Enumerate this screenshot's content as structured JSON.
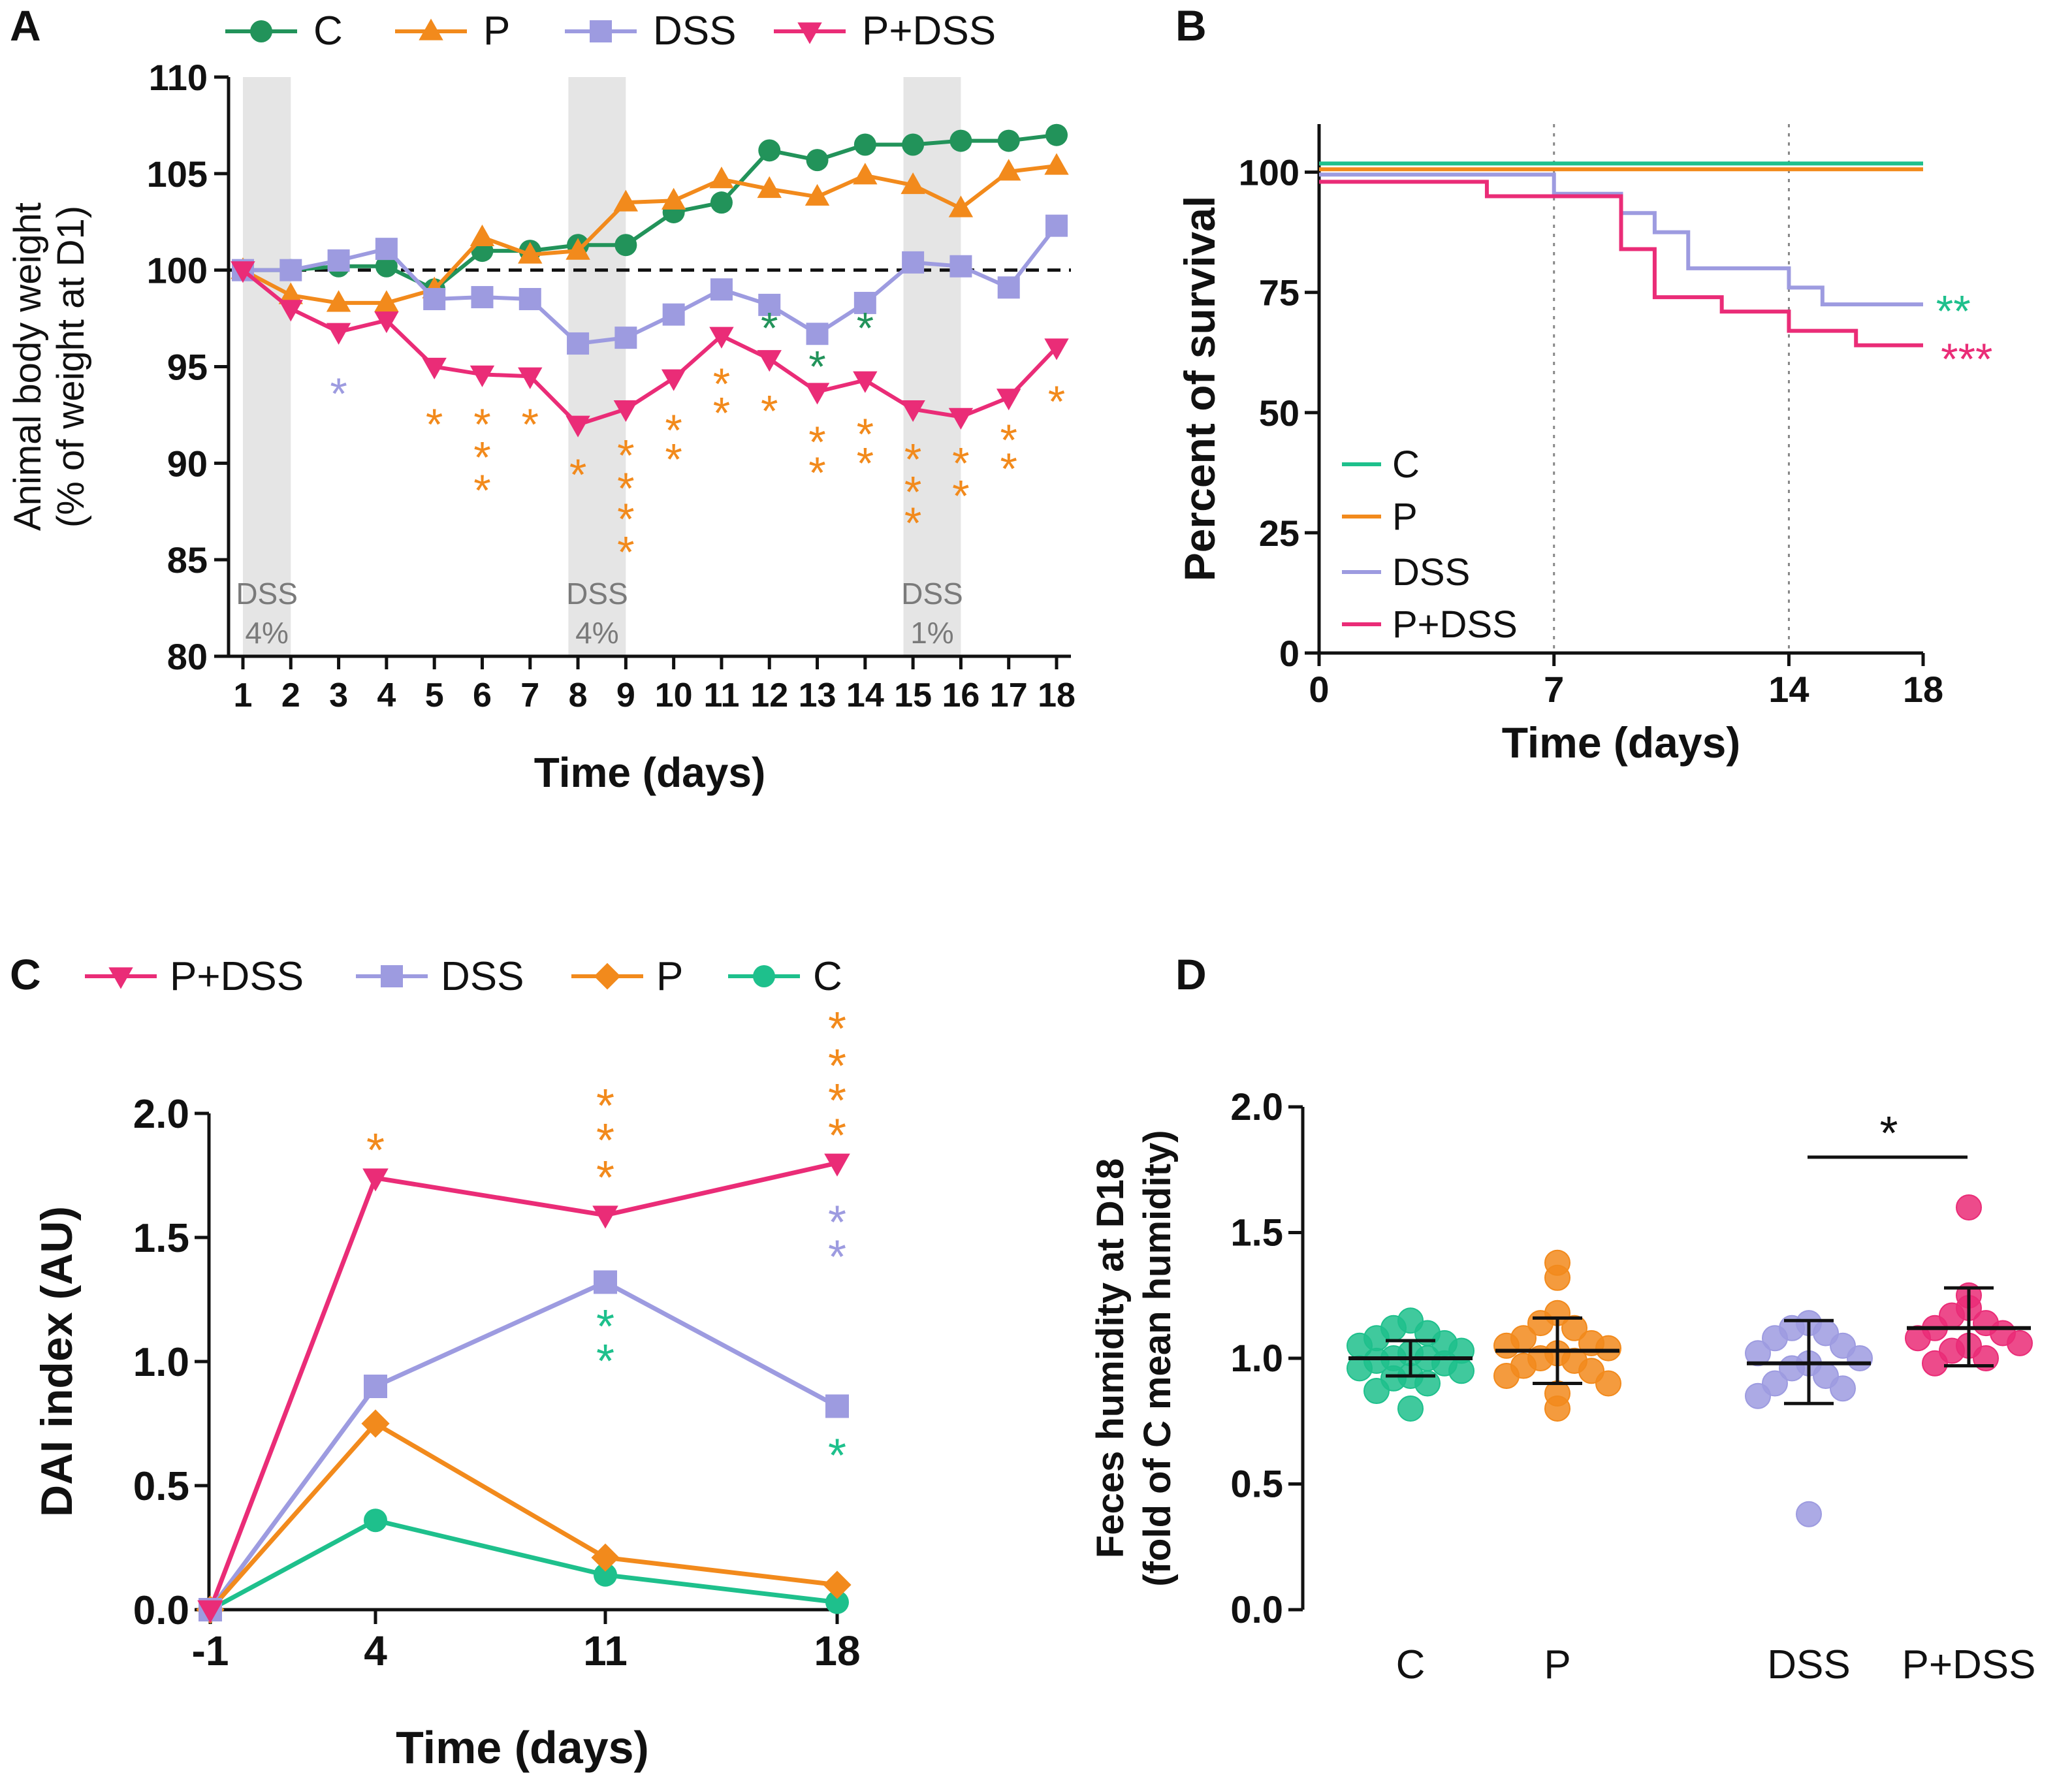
{
  "colors": {
    "C_A": "#22935a",
    "C": "#1ec08c",
    "P": "#f28a1c",
    "DSS": "#9d9be0",
    "PDSS": "#ea2c77",
    "shade": "#e5e5e5",
    "shade_text": "#7a7a7a",
    "black": "#111111"
  },
  "chart_data": [
    {
      "id": "A",
      "panel_label": "A",
      "type": "line",
      "title": "",
      "xlabel": "Time (days)",
      "ylabel_line1": "Animal body weight",
      "ylabel_line2": "(% of weight at D1)",
      "xlim": [
        0.7,
        18.3
      ],
      "ylim": [
        80,
        110
      ],
      "yticks": [
        80,
        85,
        90,
        95,
        100,
        105,
        110
      ],
      "xticks": [
        1,
        2,
        3,
        4,
        5,
        6,
        7,
        8,
        9,
        10,
        11,
        12,
        13,
        14,
        15,
        16,
        17,
        18
      ],
      "reference_line": 100,
      "legend_placement": "top",
      "shaded_periods": [
        {
          "from": 1,
          "to": 2,
          "label_line1": "DSS",
          "label_line2": "4%"
        },
        {
          "from": 7.8,
          "to": 9,
          "label_line1": "DSS",
          "label_line2": "4%"
        },
        {
          "from": 14.8,
          "to": 16,
          "label_line1": "DSS",
          "label_line2": "1%"
        }
      ],
      "series": [
        {
          "key": "C",
          "name": "C",
          "color_key": "C_A",
          "marker": "circle",
          "values": [
            100,
            100,
            100.2,
            100.2,
            99,
            101,
            101,
            101.3,
            101.3,
            103,
            103.5,
            106.2,
            105.7,
            106.5,
            106.5,
            106.7,
            106.7,
            107
          ]
        },
        {
          "key": "P",
          "name": "P",
          "color_key": "P",
          "marker": "triangle-up",
          "values": [
            100,
            98.7,
            98.3,
            98.3,
            99,
            101.7,
            100.8,
            101,
            103.5,
            103.6,
            104.7,
            104.2,
            103.8,
            104.9,
            104.4,
            103.2,
            105.1,
            105.4
          ]
        },
        {
          "key": "DSS",
          "name": "DSS",
          "color_key": "DSS",
          "marker": "square",
          "values": [
            100,
            100,
            100.5,
            101.1,
            98.5,
            98.6,
            98.5,
            96.2,
            96.5,
            97.7,
            99,
            98.2,
            96.7,
            98.3,
            100.4,
            100.2,
            99.1,
            102.3
          ]
        },
        {
          "key": "PDSS",
          "name": "P+DSS",
          "color_key": "PDSS",
          "marker": "triangle-down",
          "values": [
            100,
            98,
            96.8,
            97.4,
            95,
            94.6,
            94.5,
            92,
            92.8,
            94.4,
            96.6,
            95.4,
            93.7,
            94.3,
            92.8,
            92.4,
            93.4,
            96
          ]
        }
      ],
      "significance": [
        {
          "x": 3,
          "y": 93.7,
          "text": "*",
          "color_key": "DSS"
        },
        {
          "x": 5,
          "y": 92.1,
          "text": "*",
          "color_key": "P"
        },
        {
          "x": 6,
          "y": 92.1,
          "text": "*",
          "color_key": "P"
        },
        {
          "x": 6,
          "y": 90.4,
          "text": "*",
          "color_key": "P"
        },
        {
          "x": 6,
          "y": 88.7,
          "text": "*",
          "color_key": "P"
        },
        {
          "x": 7,
          "y": 92.1,
          "text": "*",
          "color_key": "P"
        },
        {
          "x": 8,
          "y": 89.5,
          "text": "*",
          "color_key": "P"
        },
        {
          "x": 9,
          "y": 90.5,
          "text": "*",
          "color_key": "P"
        },
        {
          "x": 9,
          "y": 88.8,
          "text": "*",
          "color_key": "P"
        },
        {
          "x": 9,
          "y": 87.2,
          "text": "*",
          "color_key": "P"
        },
        {
          "x": 9,
          "y": 85.5,
          "text": "*",
          "color_key": "P"
        },
        {
          "x": 10,
          "y": 91.8,
          "text": "*",
          "color_key": "P"
        },
        {
          "x": 10,
          "y": 90.3,
          "text": "*",
          "color_key": "P"
        },
        {
          "x": 11,
          "y": 94.2,
          "text": "*",
          "color_key": "P"
        },
        {
          "x": 11,
          "y": 92.7,
          "text": "*",
          "color_key": "P"
        },
        {
          "x": 12,
          "y": 97.1,
          "text": "*",
          "color_key": "C_A"
        },
        {
          "x": 12,
          "y": 92.8,
          "text": "*",
          "color_key": "P"
        },
        {
          "x": 13,
          "y": 95.1,
          "text": "*",
          "color_key": "C_A"
        },
        {
          "x": 13,
          "y": 91.2,
          "text": "*",
          "color_key": "P"
        },
        {
          "x": 13,
          "y": 89.6,
          "text": "*",
          "color_key": "P"
        },
        {
          "x": 14,
          "y": 97.1,
          "text": "*",
          "color_key": "C_A"
        },
        {
          "x": 14,
          "y": 91.6,
          "text": "*",
          "color_key": "P"
        },
        {
          "x": 14,
          "y": 90.1,
          "text": "*",
          "color_key": "P"
        },
        {
          "x": 15,
          "y": 90.3,
          "text": "*",
          "color_key": "P"
        },
        {
          "x": 15,
          "y": 88.6,
          "text": "*",
          "color_key": "P"
        },
        {
          "x": 15,
          "y": 87,
          "text": "*",
          "color_key": "P"
        },
        {
          "x": 16,
          "y": 90.1,
          "text": "*",
          "color_key": "P"
        },
        {
          "x": 16,
          "y": 88.4,
          "text": "*",
          "color_key": "P"
        },
        {
          "x": 17,
          "y": 91.3,
          "text": "*",
          "color_key": "P"
        },
        {
          "x": 17,
          "y": 89.8,
          "text": "*",
          "color_key": "P"
        },
        {
          "x": 18,
          "y": 93.3,
          "text": "*",
          "color_key": "P"
        }
      ]
    },
    {
      "id": "B",
      "panel_label": "B",
      "type": "line",
      "title": "",
      "xlabel": "Time (days)",
      "ylabel": "Percent of survival",
      "xlim": [
        0,
        18
      ],
      "ylim": [
        0,
        110
      ],
      "yticks": [
        0,
        25,
        50,
        75,
        100
      ],
      "xticks": [
        0,
        7,
        14,
        18
      ],
      "vertical_lines": [
        7,
        14
      ],
      "legend_placement": "bottom-left",
      "series": [
        {
          "key": "C",
          "name": "C",
          "color_key": "C",
          "steps": [
            [
              0,
              101.8
            ],
            [
              18,
              101.8
            ]
          ]
        },
        {
          "key": "P",
          "name": "P",
          "color_key": "P",
          "steps": [
            [
              0,
              100.6
            ],
            [
              18,
              100.6
            ]
          ]
        },
        {
          "key": "DSS",
          "name": "DSS",
          "color_key": "DSS",
          "steps": [
            [
              0,
              99.5
            ],
            [
              7,
              95.5
            ],
            [
              9,
              91.5
            ],
            [
              10,
              87.5
            ],
            [
              11,
              80
            ],
            [
              13,
              80
            ],
            [
              14,
              76
            ],
            [
              15,
              72.5
            ],
            [
              18,
              72.5
            ]
          ]
        },
        {
          "key": "PDSS",
          "name": "P+DSS",
          "color_key": "PDSS",
          "steps": [
            [
              0,
              98
            ],
            [
              5,
              95
            ],
            [
              9,
              84
            ],
            [
              10,
              74
            ],
            [
              12,
              71
            ],
            [
              14,
              67
            ],
            [
              16,
              64
            ],
            [
              18,
              64
            ]
          ]
        }
      ],
      "significance": [
        {
          "x": 18.9,
          "y": 71.5,
          "text": "**",
          "color_key": "C"
        },
        {
          "x": 19.3,
          "y": 61.5,
          "text": "***",
          "color_key": "PDSS"
        }
      ]
    },
    {
      "id": "C",
      "panel_label": "C",
      "type": "line",
      "title": "",
      "xlabel": "Time (days)",
      "ylabel": "DAI index (AU)",
      "categories": [
        "-1",
        "4",
        "11",
        "18"
      ],
      "ylim": [
        0,
        2.0
      ],
      "yticks": [
        "0.0",
        "0.5",
        "1.0",
        "1.5",
        "2.0"
      ],
      "legend_placement": "top",
      "series": [
        {
          "key": "PDSS",
          "name": "P+DSS",
          "color_key": "PDSS",
          "marker": "triangle-down",
          "values": [
            0,
            1.74,
            1.59,
            1.8
          ]
        },
        {
          "key": "DSS",
          "name": "DSS",
          "color_key": "DSS",
          "marker": "square",
          "values": [
            0,
            0.9,
            1.32,
            0.82
          ]
        },
        {
          "key": "P",
          "name": "P",
          "color_key": "P",
          "marker": "diamond",
          "values": [
            0,
            0.75,
            0.21,
            0.1
          ]
        },
        {
          "key": "C",
          "name": "C",
          "color_key": "C",
          "marker": "circle",
          "values": [
            0,
            0.36,
            0.14,
            0.03
          ]
        }
      ],
      "significance": [
        {
          "cat": 1,
          "y": 1.86,
          "text": "*",
          "color_key": "P"
        },
        {
          "cat": 2,
          "y": 2.04,
          "text": "*",
          "color_key": "P"
        },
        {
          "cat": 2,
          "y": 1.9,
          "text": "*",
          "color_key": "P"
        },
        {
          "cat": 2,
          "y": 1.75,
          "text": "*",
          "color_key": "P"
        },
        {
          "cat": 3,
          "y": 2.35,
          "text": "*",
          "color_key": "P"
        },
        {
          "cat": 3,
          "y": 2.2,
          "text": "*",
          "color_key": "P"
        },
        {
          "cat": 3,
          "y": 2.06,
          "text": "*",
          "color_key": "P"
        },
        {
          "cat": 3,
          "y": 1.92,
          "text": "*",
          "color_key": "P"
        },
        {
          "cat": 3,
          "y": 1.57,
          "text": "*",
          "color_key": "DSS"
        },
        {
          "cat": 3,
          "y": 1.43,
          "text": "*",
          "color_key": "DSS"
        },
        {
          "cat": 2,
          "y": 1.15,
          "text": "*",
          "color_key": "C"
        },
        {
          "cat": 2,
          "y": 1.01,
          "text": "*",
          "color_key": "C"
        },
        {
          "cat": 3,
          "y": 0.63,
          "text": "*",
          "color_key": "C"
        }
      ]
    },
    {
      "id": "D",
      "panel_label": "D",
      "type": "scatter",
      "title": "",
      "xlabel": "",
      "ylabel_line1": "Feces humidity at D18",
      "ylabel_line2": "(fold of C mean humidity)",
      "categories": [
        "C",
        "P",
        "DSS",
        "P+DSS"
      ],
      "ylim": [
        0,
        2.0
      ],
      "yticks": [
        "0.0",
        "0.5",
        "1.0",
        "1.5",
        "2.0"
      ],
      "groups": [
        {
          "name": "C",
          "color_key": "C",
          "mean": 1.0,
          "sd_low": 0.93,
          "sd_high": 1.07,
          "points": [
            1.15,
            1.12,
            1.1,
            1.08,
            1.06,
            1.05,
            1.03,
            1.02,
            1.0,
            1.0,
            0.99,
            0.98,
            0.96,
            0.95,
            0.93,
            0.92,
            0.9,
            0.87,
            0.8
          ]
        },
        {
          "name": "P",
          "color_key": "P",
          "mean": 1.03,
          "sd_low": 0.9,
          "sd_high": 1.16,
          "points": [
            1.38,
            1.32,
            1.18,
            1.14,
            1.12,
            1.08,
            1.06,
            1.05,
            1.04,
            1.02,
            1.0,
            0.99,
            0.97,
            0.95,
            0.93,
            0.9,
            0.86,
            0.8
          ]
        },
        {
          "name": "DSS",
          "color_key": "DSS",
          "mean": 0.98,
          "sd_low": 0.82,
          "sd_high": 1.15,
          "points": [
            1.14,
            1.12,
            1.1,
            1.08,
            1.05,
            1.02,
            1.0,
            0.98,
            0.96,
            0.93,
            0.9,
            0.88,
            0.85,
            0.38
          ]
        },
        {
          "name": "P+DSS",
          "color_key": "PDSS",
          "mean": 1.12,
          "sd_low": 0.97,
          "sd_high": 1.28,
          "points": [
            1.6,
            1.25,
            1.2,
            1.17,
            1.14,
            1.12,
            1.1,
            1.08,
            1.06,
            1.05,
            1.03,
            1.0,
            0.98
          ]
        }
      ],
      "comparison": {
        "from": 2,
        "to": 3,
        "y": 1.8,
        "text": "*"
      }
    }
  ]
}
